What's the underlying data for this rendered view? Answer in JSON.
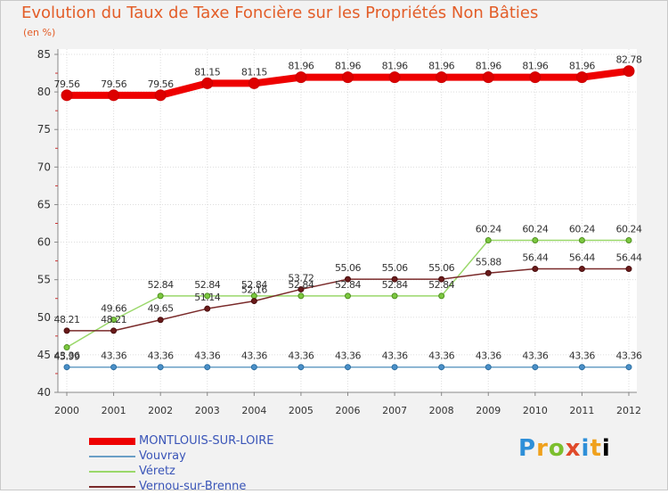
{
  "chart_data": {
    "type": "line",
    "title": "Evolution du Taux de Taxe Foncière sur les Propriétés Non Bâties",
    "subtitle": "(en %)",
    "xlabel": "",
    "ylabel": "",
    "x": [
      "2000",
      "2001",
      "2002",
      "2003",
      "2004",
      "2005",
      "2006",
      "2007",
      "2008",
      "2009",
      "2010",
      "2011",
      "2012"
    ],
    "ylim": [
      40,
      85
    ],
    "yticks": [
      40,
      45,
      50,
      55,
      60,
      65,
      70,
      75,
      80,
      85
    ],
    "series": [
      {
        "name": "MONTLOUIS-SUR-LOIRE",
        "color": "#ee0000",
        "values": [
          79.56,
          79.56,
          79.56,
          81.15,
          81.15,
          81.96,
          81.96,
          81.96,
          81.96,
          81.96,
          81.96,
          81.96,
          82.78
        ],
        "labels": [
          "79.56",
          "79.56",
          "79.56",
          "81.15",
          "81.15",
          "81.96",
          "81.96",
          "81.96",
          "81.96",
          "81.96",
          "81.96",
          "81.96",
          "82.78"
        ]
      },
      {
        "name": "Vouvray",
        "color": "#6a9fc6",
        "values": [
          43.36,
          43.36,
          43.36,
          43.36,
          43.36,
          43.36,
          43.36,
          43.36,
          43.36,
          43.36,
          43.36,
          43.36,
          43.36
        ],
        "labels": [
          "43.36",
          "43.36",
          "43.36",
          "43.36",
          "43.36",
          "43.36",
          "43.36",
          "43.36",
          "43.36",
          "43.36",
          "43.36",
          "43.36",
          "43.36"
        ]
      },
      {
        "name": "Véretz",
        "color": "#9ad86a",
        "values": [
          45.99,
          49.66,
          52.84,
          52.84,
          52.84,
          52.84,
          52.84,
          52.84,
          52.84,
          60.24,
          60.24,
          60.24,
          60.24
        ],
        "labels": [
          "45.99",
          "49.66",
          "52.84",
          "52.84",
          "52.84",
          "52.84",
          "52.84",
          "52.84",
          "52.84",
          "60.24",
          "60.24",
          "60.24",
          "60.24"
        ]
      },
      {
        "name": "Vernou-sur-Brenne",
        "color": "#7a2a2a",
        "values": [
          48.21,
          48.21,
          49.65,
          51.14,
          52.16,
          53.72,
          55.06,
          55.06,
          55.06,
          55.88,
          56.44,
          56.44,
          56.44
        ],
        "labels": [
          "48.21",
          "48.21",
          "49.65",
          "51.14",
          "52.16",
          "53.72",
          "55.06",
          "55.06",
          "55.06",
          "55.88",
          "56.44",
          "56.44",
          "56.44"
        ]
      }
    ]
  },
  "legend": {
    "items": [
      {
        "name": "MONTLOUIS-SUR-LOIRE",
        "color": "#ee0000"
      },
      {
        "name": "Vouvray",
        "color": "#6a9fc6"
      },
      {
        "name": "Véretz",
        "color": "#9ad86a"
      },
      {
        "name": "Vernou-sur-Brenne",
        "color": "#7a2a2a"
      }
    ]
  },
  "logo": {
    "text": "Proxiti"
  }
}
